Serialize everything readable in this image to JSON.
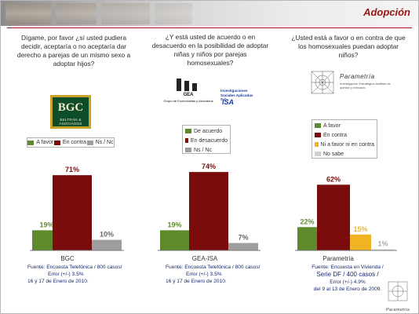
{
  "slide_title": "Adopción",
  "columns": [
    {
      "question": "Dígame, por favor ¿sí usted pudiera decidir, aceptaría o no aceptaría dar derecho a parejas de un mismo sexo a adoptar hijos?",
      "logo_text": "BGC",
      "logo_subtext": "BELTRÁN & ASOCIADOS",
      "legend": [
        "A favor",
        "En contra",
        "Ns / Nc"
      ],
      "category": "BGC",
      "source": [
        "Fuente: Encuesta Telefónica / 800 casos/",
        "Error (+/-) 3.5%",
        "16 y 17 de Enero de 2010."
      ]
    },
    {
      "question": "¿Y está usted de acuerdo o en desacuerdo en la posibilidad de adoptar niñas y niños por parejas homosexuales?",
      "logo_text": "GEA",
      "logo_subtext": "Grupo de Economistas y Asociados",
      "logo2_text": "Investigaciones Sociales Aplicadas S.C.",
      "logo2_mark": "ISA",
      "legend": [
        "De acuerdo",
        "En desacuerdo",
        "Ns / Nc"
      ],
      "category": "GEA-ISA",
      "source": [
        "Fuente: Encuesta Telefónica / 800 casos/",
        "Error (+/-) 3.5%",
        "16 y 17 de Enero de 2010."
      ]
    },
    {
      "question": "¿Usted está a favor o en contra de que los homosexuales puedan adoptar niños?",
      "logo_text": "Parametría",
      "logo_subtext": "Investigación Estratégica Análisis de opinión y mercado",
      "legend": [
        "A favor",
        "En contra",
        "Ni a favor ni en contra",
        "No sabe"
      ],
      "category": "Parametría",
      "source": [
        "Fuente: Encuesta en Vivienda /",
        "Serie DF / 400 casos /",
        "Error (+/-) 4.9%",
        "del 9 al 13 de Enero de 2009."
      ]
    }
  ],
  "footer_logo_text": "Parametría",
  "colors": {
    "green": "#5f8a2c",
    "darkred": "#7a0c0c",
    "gray": "#9e9e9e",
    "yellow": "#f0b323",
    "lightgray": "#cfcfcf",
    "accent": "#9b1212"
  },
  "chart_data": {
    "type": "bar",
    "categories": [
      "BGC",
      "GEA-ISA",
      "Parametría"
    ],
    "ylim": [
      0,
      80
    ],
    "groups": [
      {
        "category": "BGC",
        "values": [
          19,
          71,
          10
        ],
        "labels": [
          "19%",
          "71%",
          "10%"
        ],
        "colors": [
          "green",
          "darkred",
          "gray"
        ]
      },
      {
        "category": "GEA-ISA",
        "values": [
          19,
          74,
          7
        ],
        "labels": [
          "19%",
          "74%",
          "7%"
        ],
        "colors": [
          "green",
          "darkred",
          "gray"
        ]
      },
      {
        "category": "Parametría",
        "values": [
          22,
          62,
          15,
          1
        ],
        "labels": [
          "22%",
          "62%",
          "15%",
          "1%"
        ],
        "colors": [
          "green",
          "darkred",
          "yellow",
          "lightgray"
        ]
      }
    ]
  }
}
